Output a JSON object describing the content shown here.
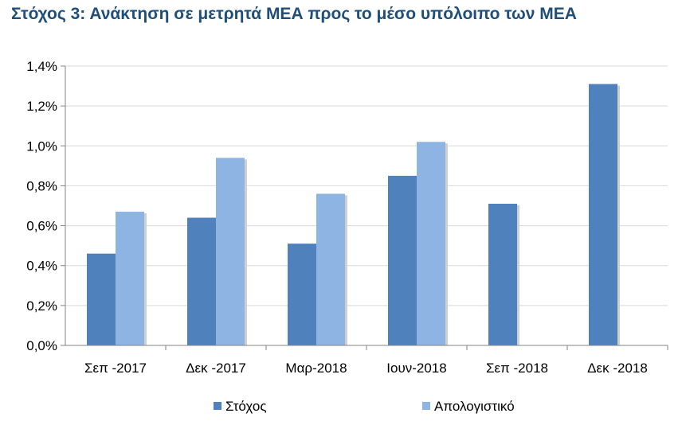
{
  "chart_data": {
    "type": "bar",
    "title": "Στόχος 3: Ανάκτηση σε μετρητά ΜΕΑ προς το μέσο υπόλοιπο των ΜΕΑ",
    "categories": [
      "Σεπ -2017",
      "Δεκ -2017",
      "Μαρ-2018",
      "Ιουν-2018",
      "Σεπ -2018",
      "Δεκ -2018"
    ],
    "series": [
      {
        "name": "Στόχος",
        "color": "#4f81bd",
        "values": [
          0.46,
          0.64,
          0.51,
          0.85,
          0.71,
          1.31
        ]
      },
      {
        "name": "Απολογιστικό",
        "color": "#8eb4e3",
        "values": [
          0.67,
          0.94,
          0.76,
          1.02,
          null,
          null
        ]
      }
    ],
    "yticks": [
      "0,0%",
      "0,2%",
      "0,4%",
      "0,6%",
      "0,8%",
      "1,0%",
      "1,2%",
      "1,4%"
    ],
    "ylim": [
      0,
      1.4
    ],
    "grid": true,
    "legend_position": "bottom"
  }
}
